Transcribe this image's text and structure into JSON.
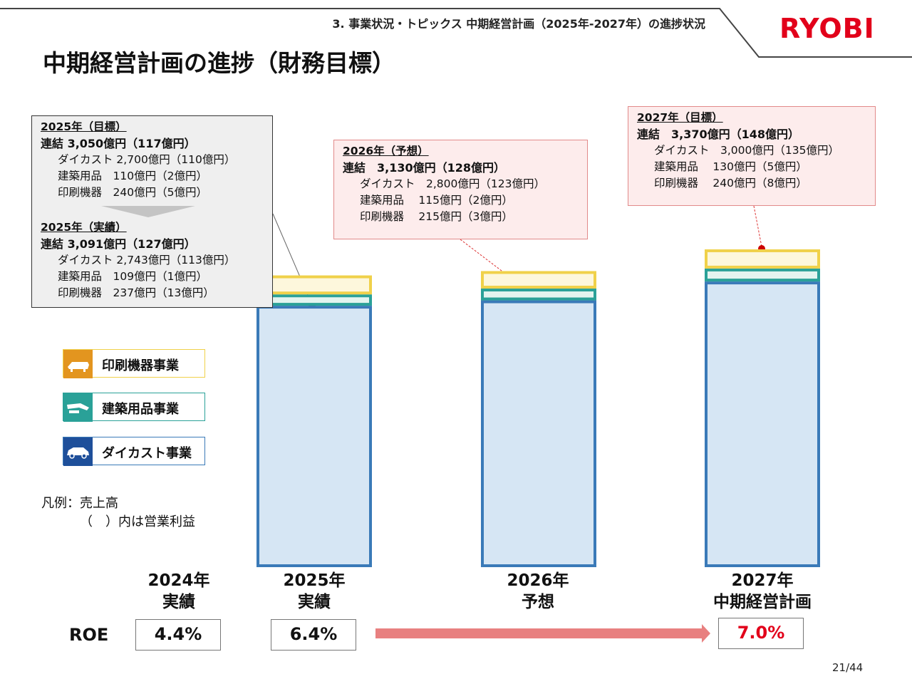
{
  "header": {
    "section": "3. 事業状況・トピックス 中期経営計画（2025年-2027年）の進捗状況",
    "logo": "RYOBI",
    "title": "中期経営計画の進捗（財務目標）"
  },
  "colors": {
    "die_cast": "#3a7ab8",
    "building": "#2aa198",
    "printing": "#f0d14a",
    "accent": "#e2001a",
    "arrow": "#e88080"
  },
  "boxes": {
    "b2025": {
      "target_year": "2025年（目標）",
      "target_total": "連結 3,050億円（117億円）",
      "target_items": [
        "ダイカスト 2,700億円（110億円）",
        "建築用品　110億円（2億円）",
        "印刷機器　240億円（5億円）"
      ],
      "actual_year": "2025年（実績）",
      "actual_total": "連結 3,091億円（127億円）",
      "actual_items": [
        "ダイカスト 2,743億円（113億円）",
        "建築用品　109億円（1億円）",
        "印刷機器　237億円（13億円）"
      ]
    },
    "b2026": {
      "year": "2026年（予想）",
      "total": "連結　3,130億円（128億円）",
      "items": [
        "ダイカスト　2,800億円（123億円）",
        "建築用品　 115億円（2億円）",
        "印刷機器　 215億円（3億円）"
      ]
    },
    "b2027": {
      "year": "2027年（目標）",
      "total": "連結　3,370億円（148億円）",
      "items": [
        "ダイカスト　3,000億円（135億円）",
        "建築用品　 130億円（5億円）",
        "印刷機器　 240億円（8億円）"
      ]
    }
  },
  "legend": {
    "items": [
      "印刷機器事業",
      "建築用品事業",
      "ダイカスト事業"
    ],
    "note_line1": "凡例：売上高",
    "note_line2": "（　）内は営業利益"
  },
  "chart_data": {
    "type": "bar",
    "stacked": true,
    "categories": [
      "2025年 実績",
      "2026年 予想",
      "2027年 中期経営計画"
    ],
    "series": [
      {
        "name": "ダイカスト事業",
        "values": [
          2743,
          2800,
          3000
        ]
      },
      {
        "name": "建築用品事業",
        "values": [
          109,
          115,
          130
        ]
      },
      {
        "name": "印刷機器事業",
        "values": [
          237,
          215,
          240
        ]
      }
    ],
    "totals": [
      3091,
      3130,
      3370
    ],
    "unit": "億円"
  },
  "columns": [
    {
      "year": "2024年",
      "label": "実績",
      "roe": "4.4%"
    },
    {
      "year": "2025年",
      "label": "実績",
      "roe": "6.4%"
    },
    {
      "year": "2026年",
      "label": "予想"
    },
    {
      "year": "2027年",
      "label": "中期経営計画",
      "roe": "7.0%"
    }
  ],
  "roe_label": "ROE",
  "page": "21/44"
}
